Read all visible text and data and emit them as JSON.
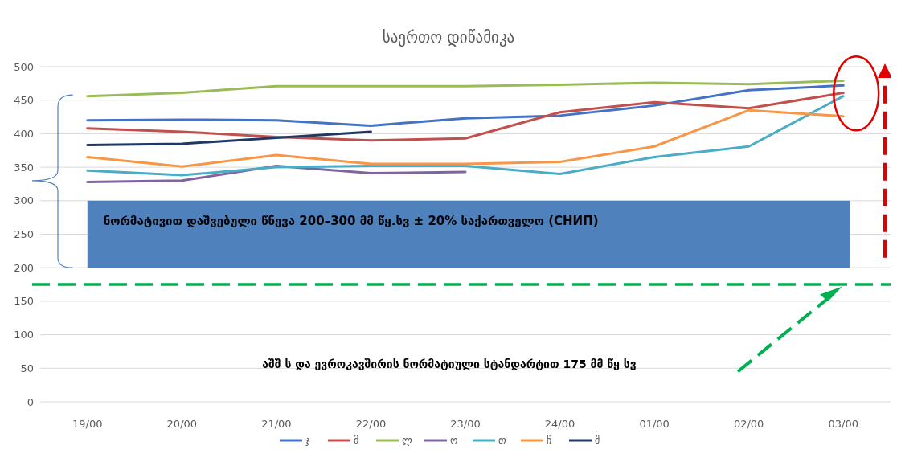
{
  "chart_data": {
    "type": "line",
    "title": "საერთო დიწამიკა",
    "categories": [
      "19/00",
      "20/00",
      "21/00",
      "22/00",
      "23/00",
      "24/00",
      "01/00",
      "02/00",
      "03/00"
    ],
    "series": [
      {
        "name": "ჯ",
        "color": "#4472c4",
        "values": [
          420,
          421,
          420,
          412,
          423,
          427,
          442,
          465,
          472
        ]
      },
      {
        "name": "მ",
        "color": "#c0504d",
        "values": [
          408,
          403,
          395,
          390,
          393,
          432,
          447,
          438,
          461
        ]
      },
      {
        "name": "ლ",
        "color": "#9bbb59",
        "values": [
          456,
          461,
          471,
          471,
          471,
          473,
          476,
          474,
          479
        ]
      },
      {
        "name": "ო",
        "color": "#8064a2",
        "values": [
          328,
          330,
          352,
          341,
          343,
          null,
          null,
          null,
          null
        ]
      },
      {
        "name": "თ",
        "color": "#4bacc6",
        "values": [
          345,
          338,
          350,
          352,
          352,
          340,
          365,
          381,
          456
        ]
      },
      {
        "name": "ჩ",
        "color": "#f79646",
        "values": [
          365,
          351,
          368,
          355,
          355,
          358,
          381,
          435,
          426
        ]
      },
      {
        "name": "შ",
        "color": "#1f3864",
        "values": [
          383,
          385,
          394,
          403,
          null,
          null,
          null,
          null,
          null
        ]
      }
    ],
    "ylim": [
      0,
      500
    ],
    "yticks": [
      0,
      50,
      100,
      150,
      200,
      250,
      300,
      350,
      400,
      450,
      500
    ],
    "grid": "y",
    "legend": "bottom",
    "marker": "none",
    "line_style": "solid",
    "bands": [
      {
        "axis": "y",
        "from": 200,
        "to": 300,
        "label": "ნორმატივით დაშვებული წნევა 200–300 მმ წყ.სვ ± 20%      საქართველო  (СНИП)",
        "color": "#4f81bd"
      }
    ],
    "ref_lines": [
      {
        "axis": "y",
        "value": 175,
        "color": "#00b050",
        "line_style": "dashed"
      }
    ],
    "annotations": [
      "აშშ ს და ევროკავშირის ნორმატიული სტანდარტით  175 მმ წყ სვ"
    ]
  }
}
